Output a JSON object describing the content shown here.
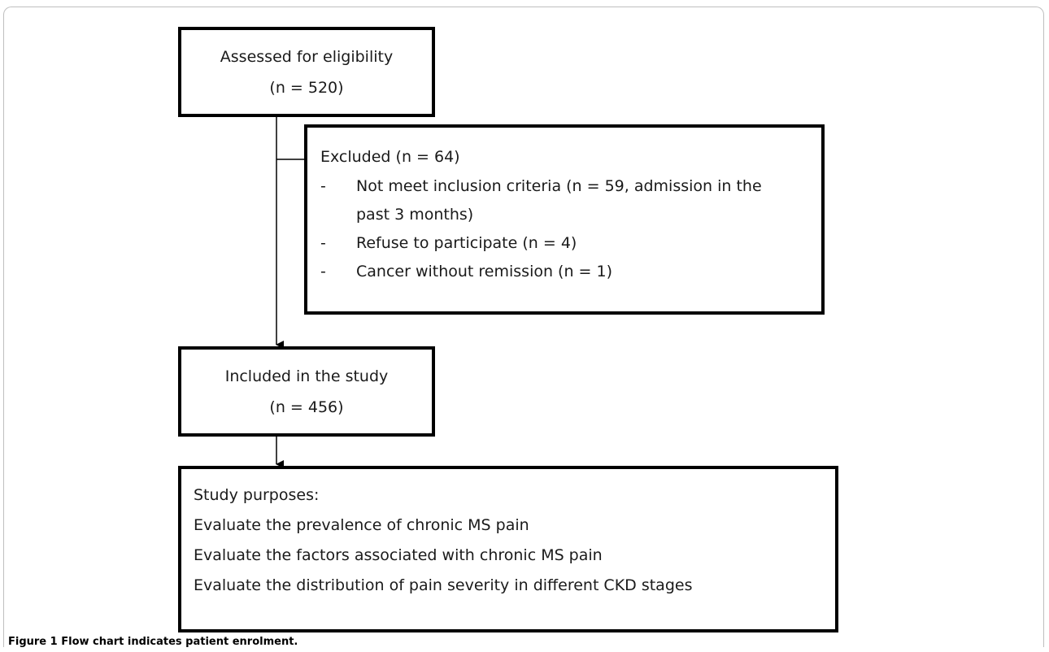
{
  "flowchart": {
    "eligibility": {
      "title": "Assessed for eligibility",
      "count": "(n = 520)"
    },
    "excluded": {
      "heading": "Excluded (n = 64)",
      "items": [
        {
          "dash": "-",
          "line1": "Not meet inclusion criteria (n = 59, admission in the",
          "line2": "past 3 months)"
        },
        {
          "dash": "-",
          "line1": "Refuse to participate (n = 4)"
        },
        {
          "dash": "-",
          "line1": "Cancer without remission (n = 1)"
        }
      ]
    },
    "included": {
      "title": "Included in the study",
      "count": "(n = 456)"
    },
    "purposes": {
      "heading": "Study purposes:",
      "items": [
        "Evaluate the prevalence of chronic MS pain",
        "Evaluate the factors associated with chronic MS pain",
        "Evaluate the distribution of pain severity in different CKD stages"
      ]
    }
  },
  "caption": {
    "label": "Figure 1",
    "text": "Flow chart indicates patient enrolment."
  }
}
